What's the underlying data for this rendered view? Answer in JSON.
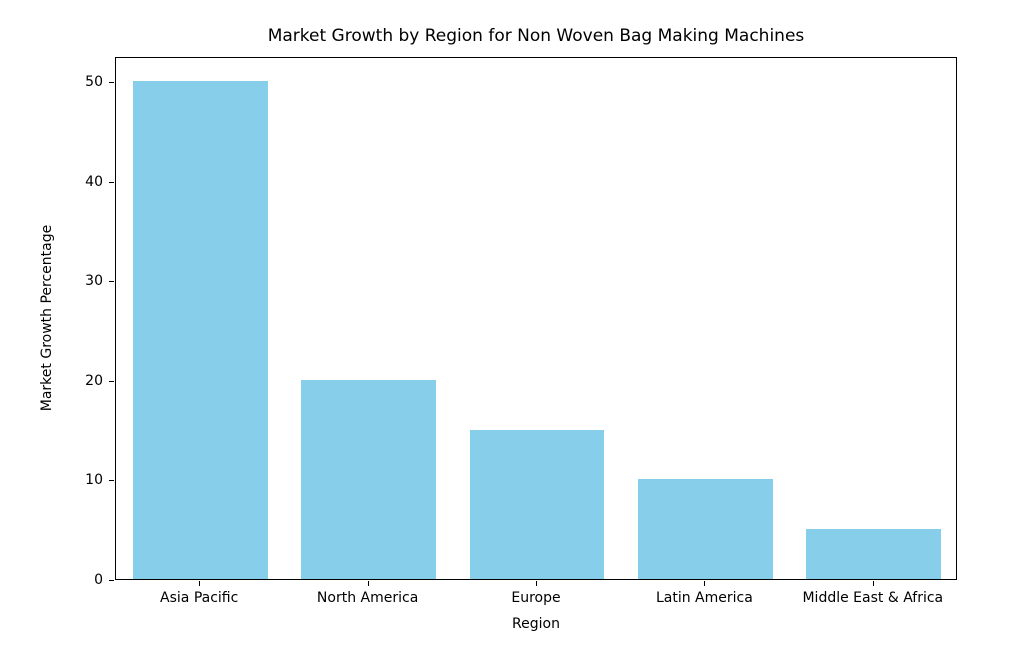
{
  "chart_data": {
    "type": "bar",
    "title": "Market Growth by Region for Non Woven Bag Making Machines",
    "categories": [
      "Asia Pacific",
      "North America",
      "Europe",
      "Latin America",
      "Middle East & Africa"
    ],
    "values": [
      50,
      20,
      15,
      10,
      5
    ],
    "xlabel": "Region",
    "ylabel": "Market Growth Percentage",
    "yticks": [
      0,
      10,
      20,
      30,
      40,
      50
    ],
    "ylim": [
      0,
      52.5
    ],
    "bar_color": "#87CEEB",
    "bar_width_ratio": 0.8,
    "grid": false,
    "legend": "none",
    "spine_color": "#000000",
    "background_color": "#ffffff"
  }
}
